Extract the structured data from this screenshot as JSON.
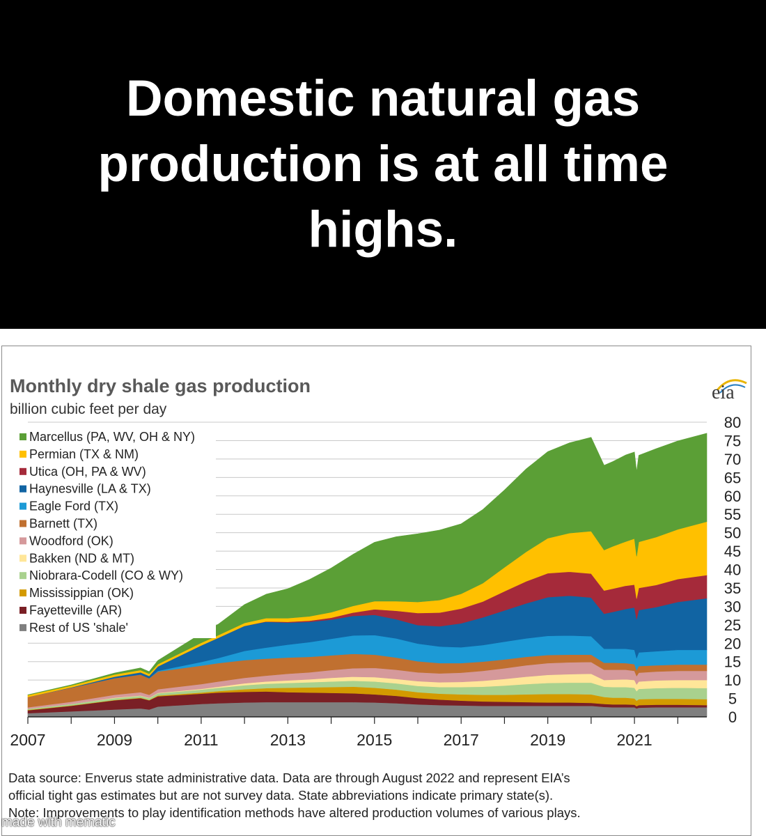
{
  "header": {
    "headline": "Domestic natural gas production is at all time highs."
  },
  "chart_data": {
    "type": "area",
    "stacked": true,
    "title": "Monthly dry shale gas production",
    "subtitle": "billion cubic feet per day",
    "logo_text": "eia",
    "xlabel": "",
    "ylabel": "billion cubic feet per day",
    "x_range": [
      2007,
      2022.67
    ],
    "ylim": [
      0,
      80
    ],
    "y_ticks": [
      0,
      5,
      10,
      15,
      20,
      25,
      30,
      35,
      40,
      45,
      50,
      55,
      60,
      65,
      70,
      75,
      80
    ],
    "x_ticks": [
      "2007",
      "2009",
      "2011",
      "2013",
      "2015",
      "2017",
      "2019",
      "2021"
    ],
    "gridlines": true,
    "legend_position": "top-left",
    "x": [
      2007,
      2008,
      2009,
      2009.6,
      2009.8,
      2010,
      2011,
      2011.4,
      2012,
      2012.5,
      2013,
      2013.5,
      2014,
      2014.5,
      2015,
      2015.5,
      2016,
      2016.5,
      2017,
      2017.5,
      2018,
      2018.5,
      2019,
      2019.5,
      2020,
      2020.3,
      2020.5,
      2020.8,
      2021,
      2021.05,
      2021.1,
      2021.5,
      2022,
      2022.67
    ],
    "series": [
      {
        "name": "Rest of US 'shale'",
        "color": "#7f7f7f",
        "values": [
          1.0,
          1.5,
          2.0,
          2.3,
          2.0,
          2.8,
          3.5,
          3.7,
          3.9,
          4.0,
          4.0,
          4.0,
          4.0,
          4.0,
          3.9,
          3.7,
          3.4,
          3.2,
          3.1,
          3.0,
          3.0,
          3.0,
          3.0,
          3.0,
          3.0,
          2.7,
          2.6,
          2.6,
          2.6,
          2.3,
          2.5,
          2.6,
          2.6,
          2.6
        ]
      },
      {
        "name": "Fayetteville (AR)",
        "color": "#7a1f25",
        "values": [
          0.8,
          1.5,
          2.5,
          2.8,
          2.5,
          2.8,
          2.8,
          2.9,
          2.9,
          2.9,
          2.7,
          2.6,
          2.5,
          2.4,
          2.2,
          2.0,
          1.7,
          1.5,
          1.3,
          1.2,
          1.1,
          1.0,
          0.9,
          0.9,
          0.8,
          0.8,
          0.8,
          0.8,
          0.7,
          0.6,
          0.7,
          0.7,
          0.7,
          0.6
        ]
      },
      {
        "name": "Mississippian (OK)",
        "color": "#d39a00",
        "values": [
          0.1,
          0.1,
          0.1,
          0.1,
          0.1,
          0.2,
          0.3,
          0.4,
          0.7,
          0.9,
          1.2,
          1.4,
          1.6,
          1.8,
          1.8,
          1.7,
          1.6,
          1.6,
          1.7,
          1.8,
          1.9,
          2.1,
          2.3,
          2.3,
          2.3,
          1.9,
          1.8,
          1.8,
          1.7,
          1.5,
          1.6,
          1.6,
          1.6,
          1.6
        ]
      },
      {
        "name": "Niobrara-Codell (CO & WY)",
        "color": "#a9d18e",
        "values": [
          0.3,
          0.4,
          0.5,
          0.5,
          0.5,
          0.6,
          0.8,
          0.9,
          1.1,
          1.2,
          1.3,
          1.4,
          1.5,
          1.6,
          1.7,
          1.7,
          1.7,
          1.8,
          2.0,
          2.2,
          2.5,
          2.8,
          3.0,
          3.1,
          3.2,
          2.8,
          2.9,
          2.9,
          2.9,
          2.6,
          2.8,
          2.9,
          3.0,
          3.0
        ]
      },
      {
        "name": "Bakken (ND & MT)",
        "color": "#ffe699",
        "values": [
          0.0,
          0.0,
          0.1,
          0.1,
          0.1,
          0.1,
          0.2,
          0.3,
          0.5,
          0.6,
          0.7,
          0.8,
          1.0,
          1.1,
          1.2,
          1.2,
          1.3,
          1.3,
          1.4,
          1.6,
          1.8,
          2.0,
          2.2,
          2.3,
          2.4,
          1.8,
          2.0,
          2.1,
          2.1,
          1.8,
          2.0,
          2.1,
          2.1,
          2.2
        ]
      },
      {
        "name": "Woodford (OK)",
        "color": "#d5999b",
        "values": [
          0.4,
          0.6,
          0.8,
          0.9,
          0.8,
          1.0,
          1.3,
          1.4,
          1.5,
          1.6,
          1.8,
          1.9,
          2.1,
          2.3,
          2.5,
          2.5,
          2.4,
          2.4,
          2.5,
          2.7,
          2.9,
          3.1,
          3.2,
          3.2,
          3.2,
          2.8,
          2.7,
          2.6,
          2.5,
          2.3,
          2.4,
          2.4,
          2.5,
          2.5
        ]
      },
      {
        "name": "Barnett (TX)",
        "color": "#c07030",
        "values": [
          2.8,
          3.8,
          4.5,
          4.8,
          4.5,
          4.8,
          5.0,
          5.0,
          4.8,
          4.6,
          4.4,
          4.2,
          4.0,
          3.9,
          3.6,
          3.3,
          3.0,
          2.8,
          2.6,
          2.5,
          2.4,
          2.3,
          2.2,
          2.1,
          2.0,
          1.9,
          1.9,
          1.8,
          1.8,
          1.6,
          1.8,
          1.7,
          1.7,
          1.7
        ]
      },
      {
        "name": "Eagle Ford (TX)",
        "color": "#1c9ad6",
        "values": [
          0.0,
          0.0,
          0.0,
          0.0,
          0.0,
          0.2,
          1.0,
          1.4,
          2.5,
          3.0,
          3.5,
          4.0,
          4.5,
          5.0,
          5.3,
          5.2,
          4.8,
          4.5,
          4.3,
          4.5,
          4.8,
          5.0,
          5.2,
          5.2,
          5.0,
          3.8,
          3.8,
          3.9,
          3.9,
          3.3,
          3.7,
          3.8,
          4.0,
          4.0
        ]
      },
      {
        "name": "Haynesville (LA & TX)",
        "color": "#1164a3",
        "values": [
          0.0,
          0.1,
          0.4,
          0.6,
          0.6,
          1.2,
          4.5,
          5.5,
          6.8,
          7.0,
          6.0,
          5.5,
          5.2,
          5.3,
          5.5,
          5.2,
          5.0,
          5.5,
          6.5,
          7.5,
          8.5,
          9.5,
          10.5,
          10.8,
          10.5,
          9.5,
          10.0,
          10.8,
          11.5,
          10.5,
          11.5,
          12.0,
          13.0,
          14.0
        ]
      },
      {
        "name": "Utica (OH, PA & WV)",
        "color": "#a52a3a",
        "values": [
          0.0,
          0.0,
          0.0,
          0.0,
          0.0,
          0.0,
          0.0,
          0.0,
          0.0,
          0.1,
          0.2,
          0.3,
          0.5,
          0.9,
          1.5,
          2.3,
          3.3,
          3.7,
          4.0,
          4.3,
          5.2,
          6.0,
          6.5,
          6.5,
          6.5,
          6.3,
          6.3,
          6.3,
          6.2,
          5.6,
          6.0,
          6.0,
          6.2,
          6.3
        ]
      },
      {
        "name": "Permian (TX & NM)",
        "color": "#ffc000",
        "values": [
          0.5,
          0.5,
          0.6,
          0.6,
          0.6,
          0.6,
          0.7,
          0.7,
          0.8,
          0.9,
          1.0,
          1.2,
          1.5,
          1.8,
          2.2,
          2.6,
          3.0,
          3.4,
          4.0,
          5.0,
          6.5,
          8.0,
          9.5,
          10.5,
          11.5,
          11.0,
          11.5,
          12.0,
          12.5,
          11.5,
          12.5,
          13.0,
          13.5,
          14.5
        ]
      },
      {
        "name": "Marcellus (PA, WV, OH & NY)",
        "color": "#5b9f36",
        "values": [
          0.1,
          0.2,
          0.4,
          0.6,
          0.6,
          1.0,
          2.5,
          3.0,
          5.0,
          6.5,
          8.0,
          10.0,
          12.0,
          14.0,
          16.0,
          17.5,
          18.5,
          19.0,
          19.0,
          20.0,
          21.0,
          22.5,
          23.5,
          24.5,
          25.5,
          23.0,
          23.0,
          23.5,
          23.5,
          23.0,
          23.5,
          24.0,
          24.0,
          24.0
        ]
      }
    ]
  },
  "footnote": {
    "line1": "Data source: Enverus state administrative data. Data are through August 2022 and represent EIA’s",
    "line2": "official tight gas estimates but are not survey data. State abbreviations indicate primary state(s).",
    "line3": "Note: Improvements to play identification methods have altered production volumes of various plays."
  },
  "watermark": {
    "text": "made with mematic"
  }
}
